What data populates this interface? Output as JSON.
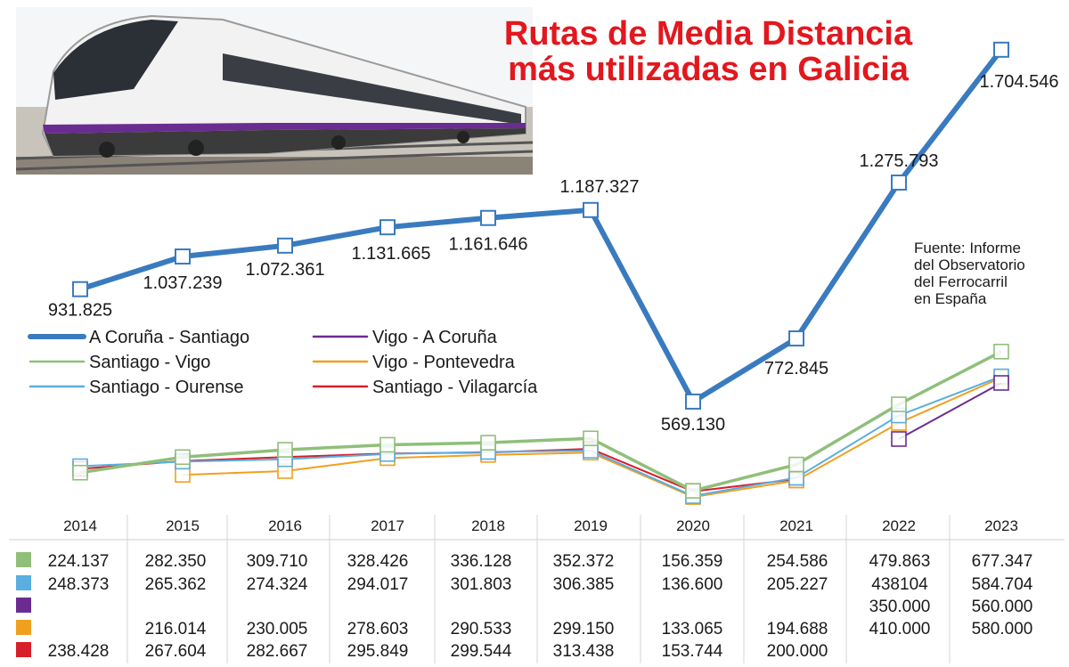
{
  "title_lines": [
    "Rutas de Media Distancia",
    "más utilizadas en Galicia"
  ],
  "source_lines": [
    "Fuente: Informe",
    "del Observatorio",
    "del Ferrocarril",
    "en España"
  ],
  "colors": {
    "title": "#e3171e",
    "a_coruna_santiago": "#3a7bbf",
    "santiago_vigo": "#8fbf7a",
    "santiago_ourense": "#5aaee0",
    "vigo_a_coruna": "#6a2c91",
    "vigo_pontevedra": "#f0a020",
    "santiago_vilagarcia": "#d81e2a"
  },
  "icons": {
    "photo": "train-photo"
  },
  "chart_data": {
    "type": "line",
    "x": [
      "2014",
      "2015",
      "2016",
      "2017",
      "2018",
      "2019",
      "2020",
      "2021",
      "2022",
      "2023"
    ],
    "main_series": {
      "name": "A Coruña - Santiago",
      "values": [
        931825,
        1037239,
        1072361,
        1131665,
        1161646,
        1187327,
        569130,
        772845,
        1275793,
        1704546
      ],
      "labels": [
        "931.825",
        "1.037.239",
        "1.072.361",
        "1.131.665",
        "1.161.646",
        "1.187.327",
        "569.130",
        "772.845",
        "1.275.793",
        "1.704.546"
      ]
    },
    "legend": [
      {
        "name": "A Coruña - Santiago",
        "color": "#3a7bbf"
      },
      {
        "name": "Santiago - Vigo",
        "color": "#8fbf7a"
      },
      {
        "name": "Santiago - Ourense",
        "color": "#5aaee0"
      },
      {
        "name": "Vigo - A Coruña",
        "color": "#6a2c91"
      },
      {
        "name": "Vigo - Pontevedra",
        "color": "#f0a020"
      },
      {
        "name": "Santiago - Vilagarcía",
        "color": "#d81e2a"
      }
    ],
    "table_series": [
      {
        "color": "#8fbf7a",
        "values": [
          224137,
          282350,
          309710,
          328426,
          336128,
          352372,
          156359,
          254586,
          479863,
          677347
        ],
        "labels": [
          "224.137",
          "282.350",
          "309.710",
          "328.426",
          "336.128",
          "352.372",
          "156.359",
          "254.586",
          "479.863",
          "677.347"
        ]
      },
      {
        "color": "#5aaee0",
        "values": [
          248373,
          265362,
          274324,
          294017,
          301803,
          306385,
          136600,
          205227,
          438104,
          584704
        ],
        "labels": [
          "248.373",
          "265.362",
          "274.324",
          "294.017",
          "301.803",
          "306.385",
          "136.600",
          "205.227",
          "438104",
          "584.704"
        ]
      },
      {
        "color": "#6a2c91",
        "values": [
          null,
          null,
          null,
          null,
          null,
          null,
          null,
          null,
          350000,
          560000
        ],
        "labels": [
          "",
          "",
          "",
          "",
          "",
          "",
          "",
          "",
          "350.000",
          "560.000"
        ]
      },
      {
        "color": "#f0a020",
        "values": [
          null,
          216014,
          230005,
          278603,
          290533,
          299150,
          133065,
          194688,
          410000,
          580000
        ],
        "labels": [
          "",
          "216.014",
          "230.005",
          "278.603",
          "290.533",
          "299.150",
          "133.065",
          "194.688",
          "410.000",
          "580.000"
        ]
      },
      {
        "color": "#d81e2a",
        "values": [
          238428,
          267604,
          282667,
          295849,
          299544,
          313438,
          153744,
          200000,
          null,
          null
        ],
        "labels": [
          "238.428",
          "267.604",
          "282.667",
          "295.849",
          "299.544",
          "313.438",
          "153.744",
          "200.000",
          "",
          ""
        ]
      }
    ]
  }
}
